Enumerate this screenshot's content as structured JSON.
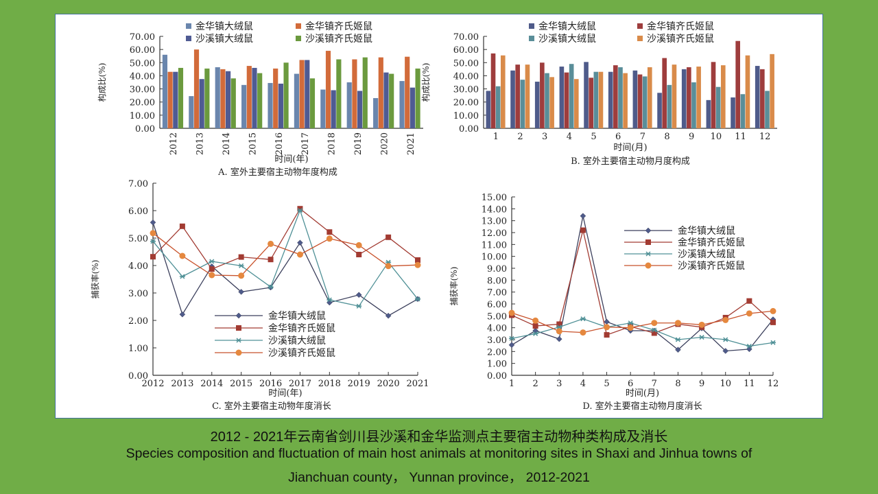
{
  "caption": {
    "zh": "2012 - 2021年云南省剑川县沙溪和金华监测点主要宿主动物种类构成及消长",
    "en_line1": "Species composition and fluctuation of main host animals at monitoring sites in Shaxi and Jinhua towns of",
    "en_line2": "Jianchuan county， Yunnan province， 2012-2021"
  },
  "chart_data": [
    {
      "id": "A",
      "type": "bar",
      "title": "A. 室外主要宿主动物年度构成",
      "xlabel": "时间(年)",
      "ylabel": "构成比(%)",
      "ylim": [
        0,
        70
      ],
      "yticks": [
        "0.00",
        "10.00",
        "20.00",
        "30.00",
        "40.00",
        "50.00",
        "60.00",
        "70.00"
      ],
      "categories": [
        "2012",
        "2013",
        "2014",
        "2015",
        "2016",
        "2017",
        "2018",
        "2019",
        "2020",
        "2021"
      ],
      "legend": "top",
      "series": [
        {
          "name": "金华镇大绒鼠",
          "color": "#6a86ad",
          "values": [
            56,
            24.5,
            46.5,
            33,
            34.5,
            41.5,
            29.5,
            35,
            23,
            36
          ]
        },
        {
          "name": "金华镇齐氏姬鼠",
          "color": "#d26b3a",
          "values": [
            43,
            60,
            45,
            47.5,
            45.5,
            52,
            59,
            52.5,
            54,
            54.5
          ]
        },
        {
          "name": "沙溪镇大绒鼠",
          "color": "#4f5b93",
          "values": [
            43,
            37.5,
            43.5,
            46,
            34,
            52,
            29,
            28.5,
            42.5,
            31
          ]
        },
        {
          "name": "沙溪镇齐氏姬鼠",
          "color": "#6b9a3e",
          "values": [
            46,
            45.5,
            38,
            42,
            50,
            38,
            52.5,
            54,
            41.5,
            45.5
          ]
        }
      ]
    },
    {
      "id": "B",
      "type": "bar",
      "title": "B. 室外主要宿主动物月度构成",
      "xlabel": "时间(月)",
      "ylabel": "构成比(%)",
      "ylim": [
        0,
        70
      ],
      "yticks": [
        "0.00",
        "10.00",
        "20.00",
        "30.00",
        "40.00",
        "50.00",
        "60.00",
        "70.00"
      ],
      "categories": [
        "1",
        "2",
        "3",
        "4",
        "5",
        "6",
        "7",
        "8",
        "9",
        "10",
        "11",
        "12"
      ],
      "legend": "top",
      "series": [
        {
          "name": "金华镇大绒鼠",
          "color": "#4f5b8a",
          "values": [
            28.5,
            44,
            35.5,
            47,
            50.5,
            43,
            44,
            27,
            45,
            21.5,
            23.5,
            47.5
          ]
        },
        {
          "name": "金华镇齐氏姬鼠",
          "color": "#9e3d3d",
          "values": [
            57,
            48.5,
            50,
            42.5,
            38.5,
            48,
            41,
            53.5,
            46.5,
            50.5,
            66.5,
            45
          ]
        },
        {
          "name": "沙溪镇大绒鼠",
          "color": "#5a8e99",
          "values": [
            32,
            37,
            42,
            49,
            43,
            46.5,
            39.5,
            33,
            35,
            31.5,
            26,
            28.5
          ]
        },
        {
          "name": "沙溪镇齐氏姬鼠",
          "color": "#d98b4a",
          "values": [
            55.5,
            48.5,
            39,
            37.5,
            43,
            42,
            46.5,
            48.5,
            47,
            48,
            55.5,
            56.5
          ]
        }
      ]
    },
    {
      "id": "C",
      "type": "line",
      "title": "C. 室外主要宿主动物年度消长",
      "xlabel": "时间(年)",
      "ylabel": "捕获率(%)",
      "ylim": [
        0,
        7
      ],
      "yticks": [
        "0.00",
        "1.00",
        "2.00",
        "3.00",
        "4.00",
        "5.00",
        "6.00",
        "7.00"
      ],
      "categories": [
        "2012",
        "2013",
        "2014",
        "2015",
        "2016",
        "2017",
        "2018",
        "2019",
        "2020",
        "2021"
      ],
      "legend": "center-bottom",
      "series": [
        {
          "name": "金华镇大绒鼠",
          "color": "#3b3f5c",
          "marker": "diamond",
          "values": [
            5.57,
            2.22,
            3.97,
            3.04,
            3.2,
            4.83,
            2.65,
            2.93,
            2.17,
            2.78
          ]
        },
        {
          "name": "金华镇齐氏姬鼠",
          "color": "#a23b32",
          "marker": "square",
          "values": [
            4.32,
            5.43,
            3.87,
            4.31,
            4.22,
            6.07,
            5.22,
            4.4,
            5.03,
            4.2
          ]
        },
        {
          "name": "沙溪镇大绒鼠",
          "color": "#4f9096",
          "marker": "star",
          "values": [
            4.88,
            3.6,
            4.15,
            3.99,
            3.22,
            6.01,
            2.75,
            2.52,
            4.12,
            2.78
          ]
        },
        {
          "name": "沙溪镇齐氏姬鼠",
          "color": "#c8512a",
          "marker": "circle",
          "values": [
            5.18,
            4.35,
            3.65,
            3.63,
            4.79,
            4.4,
            4.98,
            4.74,
            3.98,
            4.02
          ]
        }
      ]
    },
    {
      "id": "D",
      "type": "line",
      "title": "D. 室外主要宿主动物月度消长",
      "xlabel": "时间(月)",
      "ylabel": "捕获率(%)",
      "ylim": [
        0,
        15
      ],
      "yticks": [
        "0.00",
        "1.00",
        "2.00",
        "3.00",
        "4.00",
        "5.00",
        "6.00",
        "7.00",
        "8.00",
        "9.00",
        "10.00",
        "11.00",
        "12.00",
        "13.00",
        "14.00",
        "15.00"
      ],
      "categories": [
        "1",
        "2",
        "3",
        "4",
        "5",
        "6",
        "7",
        "8",
        "9",
        "10",
        "11",
        "12"
      ],
      "legend": "right",
      "series": [
        {
          "name": "金华镇大绒鼠",
          "color": "#3b3f5c",
          "marker": "diamond",
          "values": [
            2.55,
            3.75,
            3.05,
            13.4,
            4.5,
            3.75,
            3.75,
            2.15,
            3.95,
            2.05,
            2.2,
            4.7
          ]
        },
        {
          "name": "金华镇齐氏姬鼠",
          "color": "#a23b32",
          "marker": "square",
          "values": [
            5.05,
            4.15,
            4.3,
            12.2,
            3.4,
            4.1,
            3.55,
            4.3,
            4.05,
            4.85,
            6.25,
            4.45
          ]
        },
        {
          "name": "沙溪镇大绒鼠",
          "color": "#4f9096",
          "marker": "star",
          "values": [
            3.1,
            3.5,
            4.05,
            4.75,
            4.05,
            4.4,
            3.8,
            3.0,
            3.2,
            3.0,
            2.45,
            2.75
          ]
        },
        {
          "name": "沙溪镇齐氏姬鼠",
          "color": "#c8512a",
          "marker": "circle",
          "values": [
            5.25,
            4.6,
            3.7,
            3.6,
            4.05,
            4.0,
            4.4,
            4.4,
            4.25,
            4.65,
            5.2,
            5.4
          ]
        }
      ]
    }
  ]
}
